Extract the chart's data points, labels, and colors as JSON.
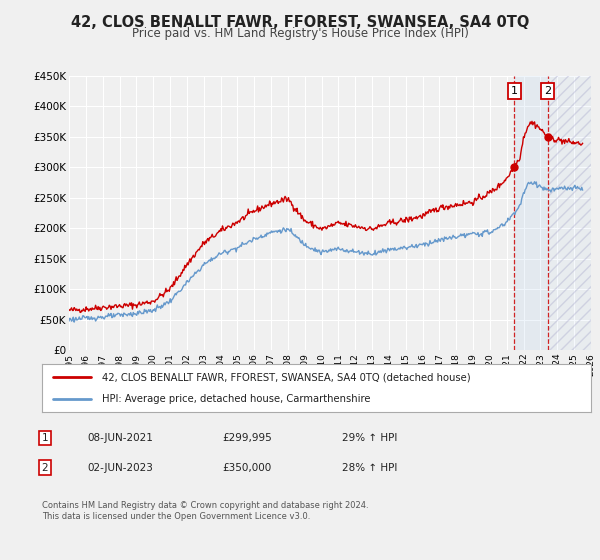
{
  "title": "42, CLOS BENALLT FAWR, FFOREST, SWANSEA, SA4 0TQ",
  "subtitle": "Price paid vs. HM Land Registry's House Price Index (HPI)",
  "xlim": [
    1995,
    2026
  ],
  "ylim": [
    0,
    450000
  ],
  "yticks": [
    0,
    50000,
    100000,
    150000,
    200000,
    250000,
    300000,
    350000,
    400000,
    450000
  ],
  "ytick_labels": [
    "£0",
    "£50K",
    "£100K",
    "£150K",
    "£200K",
    "£250K",
    "£300K",
    "£350K",
    "£400K",
    "£450K"
  ],
  "xticks": [
    1995,
    1996,
    1997,
    1998,
    1999,
    2000,
    2001,
    2002,
    2003,
    2004,
    2005,
    2006,
    2007,
    2008,
    2009,
    2010,
    2011,
    2012,
    2013,
    2014,
    2015,
    2016,
    2017,
    2018,
    2019,
    2020,
    2021,
    2022,
    2023,
    2024,
    2025,
    2026
  ],
  "legend_line1_label": "42, CLOS BENALLT FAWR, FFOREST, SWANSEA, SA4 0TQ (detached house)",
  "legend_line2_label": "HPI: Average price, detached house, Carmarthenshire",
  "line1_color": "#cc0000",
  "line2_color": "#6699cc",
  "sale1_date": "08-JUN-2021",
  "sale1_price": "£299,995",
  "sale1_hpi": "29% ↑ HPI",
  "sale1_x": 2021.44,
  "sale1_y": 299995,
  "sale2_date": "02-JUN-2023",
  "sale2_price": "£350,000",
  "sale2_hpi": "28% ↑ HPI",
  "sale2_x": 2023.42,
  "sale2_y": 350000,
  "shade_start": 2021.44,
  "shade_end": 2023.42,
  "hatch_start": 2023.42,
  "hatch_end": 2026,
  "vline1_x": 2021.44,
  "vline2_x": 2023.42,
  "footnote": "Contains HM Land Registry data © Crown copyright and database right 2024.\nThis data is licensed under the Open Government Licence v3.0.",
  "background_color": "#f0f0f0",
  "grid_color": "#ffffff",
  "title_fontsize": 10.5,
  "subtitle_fontsize": 8.5
}
